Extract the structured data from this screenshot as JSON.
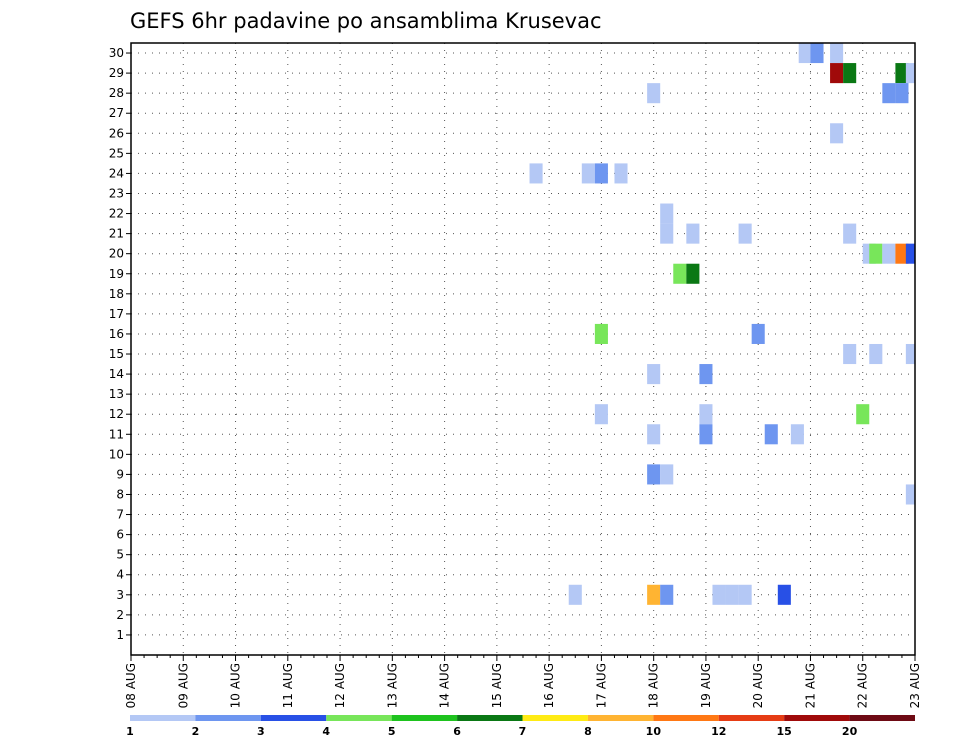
{
  "chart_data": {
    "type": "heatmap",
    "title": "GEFS 6hr padavine po ansamblima Krusevac",
    "xlabel": "",
    "ylabel": "",
    "x_ticks": [
      "08 AUG",
      "09 AUG",
      "10 AUG",
      "11 AUG",
      "12 AUG",
      "13 AUG",
      "14 AUG",
      "15 AUG",
      "16 AUG",
      "17 AUG",
      "18 AUG",
      "19 AUG",
      "20 AUG",
      "21 AUG",
      "22 AUG",
      "23 AUG"
    ],
    "xlim": [
      0,
      60
    ],
    "x_unit": "6-hour steps from 08 AUG 00Z",
    "y_ticks": [
      1,
      2,
      3,
      4,
      5,
      6,
      7,
      8,
      9,
      10,
      11,
      12,
      13,
      14,
      15,
      16,
      17,
      18,
      19,
      20,
      21,
      22,
      23,
      24,
      25,
      26,
      27,
      28,
      29,
      30
    ],
    "ylim": [
      0,
      30.5
    ],
    "grid": true,
    "colorbar": {
      "labels": [
        "1",
        "2",
        "3",
        "4",
        "5",
        "6",
        "7",
        "8",
        "10",
        "12",
        "15",
        "20"
      ],
      "colors": [
        "#b4c8f5",
        "#6e96f0",
        "#2850e6",
        "#78e65a",
        "#1ec31e",
        "#0a7814",
        "#ffeb14",
        "#ffb432",
        "#ff7814",
        "#e63c14",
        "#a00a0a",
        "#6e0a14"
      ]
    },
    "cells": [
      {
        "x": 51.6,
        "member": 30,
        "level": 1
      },
      {
        "x": 52.5,
        "member": 30,
        "level": 2
      },
      {
        "x": 54.0,
        "member": 30,
        "level": 1
      },
      {
        "x": 54.0,
        "member": 29,
        "level": 11
      },
      {
        "x": 55.0,
        "member": 29,
        "level": 6
      },
      {
        "x": 59.0,
        "member": 29,
        "level": 6
      },
      {
        "x": 59.8,
        "member": 29,
        "level": 1
      },
      {
        "x": 40.0,
        "member": 28,
        "level": 1
      },
      {
        "x": 58.0,
        "member": 28,
        "level": 2
      },
      {
        "x": 59.0,
        "member": 28,
        "level": 2
      },
      {
        "x": 54.0,
        "member": 26,
        "level": 1
      },
      {
        "x": 31.0,
        "member": 24,
        "level": 1
      },
      {
        "x": 35.0,
        "member": 24,
        "level": 1
      },
      {
        "x": 36.0,
        "member": 24,
        "level": 2
      },
      {
        "x": 37.5,
        "member": 24,
        "level": 1
      },
      {
        "x": 41.0,
        "member": 22,
        "level": 1
      },
      {
        "x": 41.0,
        "member": 21,
        "level": 1
      },
      {
        "x": 43.0,
        "member": 21,
        "level": 1
      },
      {
        "x": 47.0,
        "member": 21,
        "level": 1
      },
      {
        "x": 55.0,
        "member": 21,
        "level": 1
      },
      {
        "x": 56.5,
        "member": 20,
        "level": 1
      },
      {
        "x": 57.0,
        "member": 20,
        "level": 4
      },
      {
        "x": 58.0,
        "member": 20,
        "level": 1
      },
      {
        "x": 59.0,
        "member": 20,
        "level": 9
      },
      {
        "x": 59.8,
        "member": 20,
        "level": 3
      },
      {
        "x": 42.0,
        "member": 19,
        "level": 4
      },
      {
        "x": 43.0,
        "member": 19,
        "level": 6
      },
      {
        "x": 36.0,
        "member": 16,
        "level": 4
      },
      {
        "x": 48.0,
        "member": 16,
        "level": 2
      },
      {
        "x": 55.0,
        "member": 15,
        "level": 1
      },
      {
        "x": 57.0,
        "member": 15,
        "level": 1
      },
      {
        "x": 59.8,
        "member": 15,
        "level": 1
      },
      {
        "x": 40.0,
        "member": 14,
        "level": 1
      },
      {
        "x": 44.0,
        "member": 14,
        "level": 2
      },
      {
        "x": 36.0,
        "member": 12,
        "level": 1
      },
      {
        "x": 44.0,
        "member": 12,
        "level": 1
      },
      {
        "x": 56.0,
        "member": 12,
        "level": 4
      },
      {
        "x": 40.0,
        "member": 11,
        "level": 1
      },
      {
        "x": 44.0,
        "member": 11,
        "level": 2
      },
      {
        "x": 49.0,
        "member": 11,
        "level": 2
      },
      {
        "x": 51.0,
        "member": 11,
        "level": 1
      },
      {
        "x": 40.0,
        "member": 9,
        "level": 2
      },
      {
        "x": 41.0,
        "member": 9,
        "level": 1
      },
      {
        "x": 59.8,
        "member": 8,
        "level": 1
      },
      {
        "x": 34.0,
        "member": 3,
        "level": 1
      },
      {
        "x": 40.0,
        "member": 3,
        "level": 8
      },
      {
        "x": 41.0,
        "member": 3,
        "level": 2
      },
      {
        "x": 45.0,
        "member": 3,
        "level": 1
      },
      {
        "x": 46.0,
        "member": 3,
        "level": 1
      },
      {
        "x": 47.0,
        "member": 3,
        "level": 1
      },
      {
        "x": 50.0,
        "member": 3,
        "level": 3
      }
    ]
  }
}
